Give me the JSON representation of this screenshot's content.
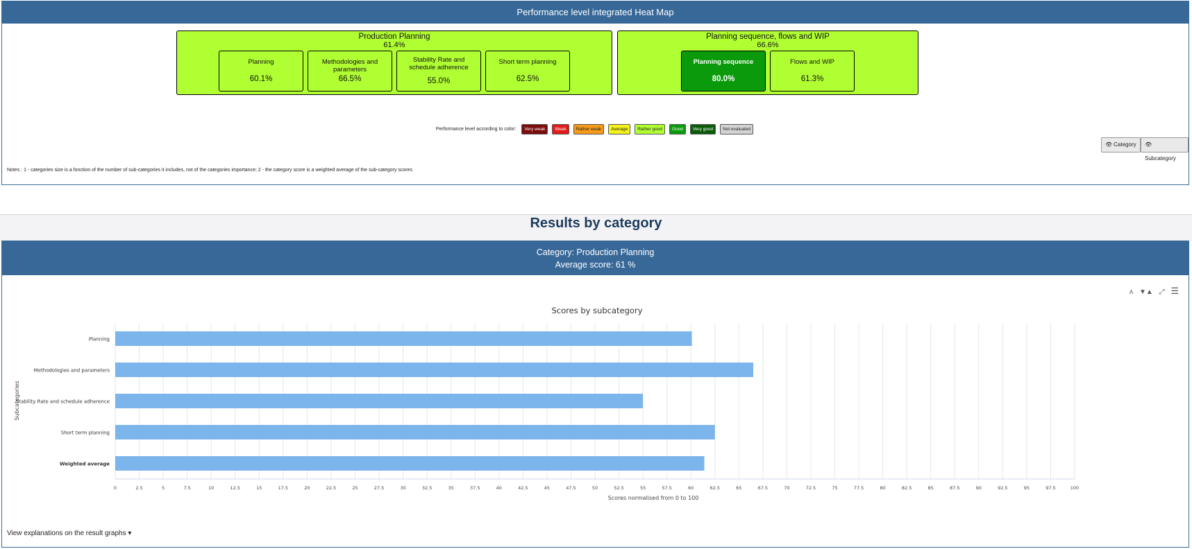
{
  "heatmap": {
    "title": "Performance level integrated Heat Map",
    "categories": [
      {
        "name": "Production Planning",
        "score": "61.4%",
        "subcategories": [
          {
            "name": "Planning",
            "score": "60.1%"
          },
          {
            "name": "Methodologies and parameters",
            "score": "66.5%"
          },
          {
            "name": "Stability Rate and schedule adherence",
            "score": "55.0%"
          },
          {
            "name": "Short term planning",
            "score": "62.5%"
          }
        ]
      },
      {
        "name": "Planning sequence, flows and WIP",
        "score": "66.6%",
        "subcategories": [
          {
            "name": "Planning sequence",
            "score": "80.0%"
          },
          {
            "name": "Flows and WIP",
            "score": "61.3%"
          }
        ]
      }
    ],
    "legend_label": "Performance level according to color:",
    "legend": [
      {
        "label": "Very weak",
        "color": "#7a0c0c",
        "text_color": "#ffffff"
      },
      {
        "label": "Weak",
        "color": "#e01b1b",
        "text_color": "#ffffff"
      },
      {
        "label": "Rather weak",
        "color": "#f59a1b",
        "text_color": "#222222"
      },
      {
        "label": "Average",
        "color": "#f4f21a",
        "text_color": "#222222"
      },
      {
        "label": "Rather good",
        "color": "#b0ff33",
        "text_color": "#222222"
      },
      {
        "label": "Good",
        "color": "#0b9a0b",
        "text_color": "#ffffff"
      },
      {
        "label": "Very good",
        "color": "#0a5a0a",
        "text_color": "#ffffff"
      },
      {
        "label": "Not evaluated",
        "color": "#d3d3d3",
        "text_color": "#222222"
      }
    ],
    "buttons": {
      "category": "Category",
      "subcategory": "Subcategory"
    },
    "notes": "Notes : 1 - categories size is a fonction of the number of sub-categories it includes, not of the categories importance; 2 - the category score is a weighted average of the sub-category scores"
  },
  "section_title": "Results by category",
  "results": {
    "category_line": "Category: Production Planning",
    "average_line": "Average score: 61 %",
    "explanations_link": "View explanations on the result graphs"
  },
  "chart_data": {
    "type": "bar",
    "orientation": "horizontal",
    "title": "Scores by subcategory",
    "xlabel": "Scores normalised from 0 to 100",
    "ylabel": "Subcategories",
    "categories": [
      "Planning",
      "Methodologies and parameters",
      "Stability Rate and schedule adherence",
      "Short term planning",
      "Weighted average"
    ],
    "values": [
      60.1,
      66.5,
      55.0,
      62.5,
      61.4
    ],
    "xlim": [
      0,
      100
    ],
    "tick_step": 2.5,
    "bar_color": "#7cb5ec",
    "grid": true,
    "bold_categories": [
      "Weighted average"
    ]
  }
}
